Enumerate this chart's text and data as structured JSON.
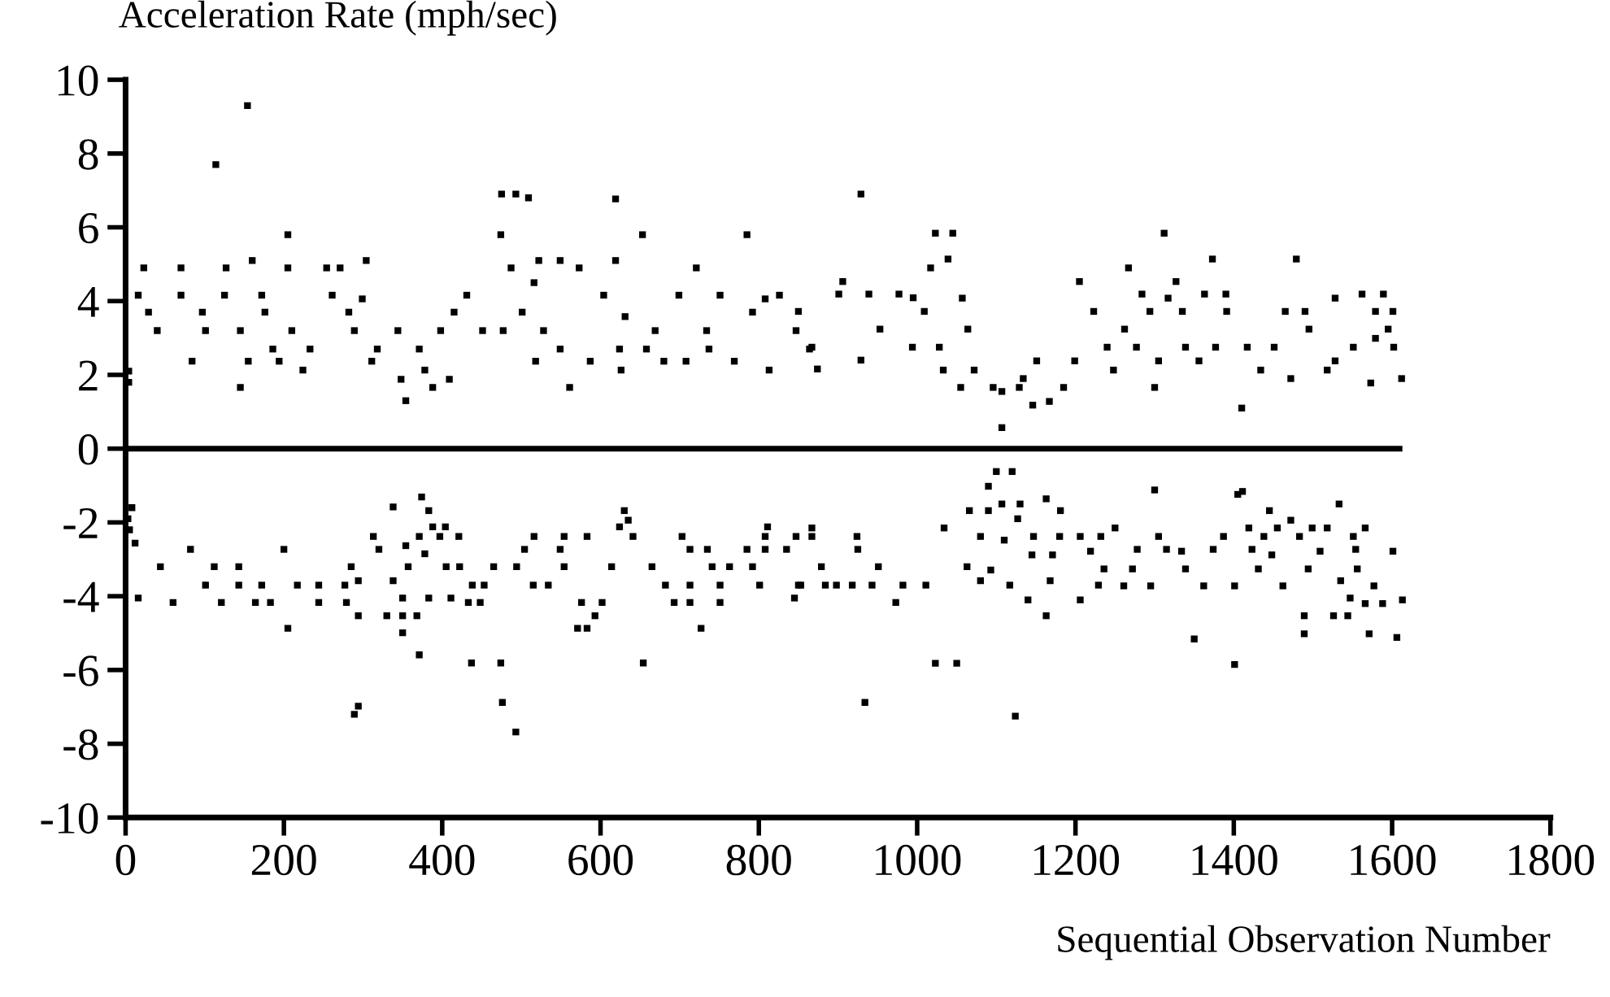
{
  "chart_data": {
    "type": "scatter",
    "ylabel": "Acceleration Rate (mph/sec)",
    "xlabel": "Sequential Observation Number",
    "xlim": [
      0,
      1800
    ],
    "xticks": [
      0,
      200,
      400,
      600,
      800,
      1000,
      1200,
      1400,
      1600,
      1800
    ],
    "ylim": [
      -10,
      10
    ],
    "yticks": [
      -10,
      -8,
      -6,
      -4,
      -2,
      0,
      2,
      4,
      6,
      8,
      10
    ],
    "grid": false,
    "legend": false,
    "marker": "square",
    "ref_lines": [
      {
        "axis": "y",
        "value": 0,
        "color": "#000000"
      }
    ],
    "series": [
      {
        "color": "#000000",
        "x": [
          4,
          4,
          16,
          23,
          29,
          40,
          70,
          70,
          84,
          97,
          101,
          114,
          125,
          127,
          145,
          145,
          154,
          155,
          160,
          172,
          176,
          186,
          194,
          205,
          205,
          210,
          224,
          233,
          254,
          261,
          271,
          282,
          289,
          304,
          299,
          311,
          318,
          344,
          348,
          354,
          371,
          378,
          388,
          398,
          409,
          415,
          431,
          451,
          474,
          475,
          477,
          487,
          493,
          509,
          501,
          516,
          518,
          522,
          528,
          549,
          549,
          561,
          573,
          587,
          604,
          619,
          619,
          624,
          631,
          626,
          653,
          658,
          669,
          680,
          699,
          721,
          708,
          734,
          737,
          751,
          769,
          785,
          792,
          808,
          813,
          826,
          847,
          864,
          850,
          867,
          874,
          901,
          906,
          929,
          929,
          939,
          953,
          977,
          995,
          994,
          1009,
          1017,
          1023,
          1028,
          1033,
          1039,
          1045,
          1057,
          1064,
          1072,
          1055,
          1096,
          1107,
          1107,
          1129,
          1134,
          1146,
          1151,
          1167,
          1185,
          1205,
          1199,
          1223,
          1240,
          1248,
          1262,
          1267,
          1277,
          1284,
          1294,
          1300,
          1305,
          1312,
          1317,
          1327,
          1335,
          1339,
          1356,
          1363,
          1373,
          1377,
          1391,
          1390,
          1410,
          1417,
          1434,
          1451,
          1465,
          1472,
          1479,
          1490,
          1495,
          1518,
          1528,
          1528,
          1551,
          1562,
          1573,
          1579,
          1579,
          1589,
          1595,
          1601,
          1602,
          1612,
          3,
          5,
          8,
          12,
          16,
          44,
          60,
          82,
          101,
          112,
          121,
          143,
          143,
          164,
          172,
          183,
          200,
          205,
          217,
          244,
          244,
          277,
          279,
          285,
          289,
          294,
          294,
          294,
          313,
          320,
          330,
          338,
          338,
          350,
          350,
          354,
          357,
          350,
          368,
          371,
          374,
          371,
          378,
          383,
          383,
          388,
          397,
          404,
          405,
          411,
          421,
          422,
          433,
          437,
          438,
          448,
          453,
          465,
          474,
          476,
          493,
          494,
          504,
          515,
          516,
          534,
          549,
          554,
          554,
          571,
          576,
          583,
          583,
          593,
          602,
          614,
          624,
          630,
          635,
          641,
          654,
          665,
          682,
          693,
          703,
          713,
          713,
          713,
          727,
          735,
          741,
          751,
          751,
          763,
          785,
          792,
          801,
          808,
          808,
          811,
          835,
          845,
          847,
          850,
          867,
          853,
          867,
          879,
          884,
          898,
          918,
          924,
          925,
          934,
          943,
          951,
          973,
          982,
          1011,
          1023,
          1034,
          1050,
          1063,
          1066,
          1090,
          1090,
          1100,
          1080,
          1080,
          1093,
          1107,
          1110,
          1117,
          1120,
          1124,
          1127,
          1130,
          1140,
          1145,
          1147,
          1163,
          1163,
          1168,
          1171,
          1181,
          1180,
          1206,
          1206,
          1219,
          1229,
          1232,
          1236,
          1250,
          1261,
          1272,
          1278,
          1295,
          1300,
          1305,
          1315,
          1334,
          1339,
          1350,
          1362,
          1374,
          1387,
          1401,
          1401,
          1405,
          1411,
          1419,
          1423,
          1431,
          1438,
          1445,
          1448,
          1455,
          1462,
          1472,
          1483,
          1489,
          1489,
          1494,
          1499,
          1509,
          1518,
          1526,
          1533,
          1535,
          1544,
          1547,
          1551,
          1554,
          1556,
          1566,
          1566,
          1571,
          1577,
          1588,
          1601,
          1606,
          1613
        ],
        "values": [
          1.8,
          2.1,
          4.16,
          4.9,
          3.7,
          3.2,
          4.9,
          4.16,
          2.37,
          3.7,
          3.2,
          7.7,
          4.16,
          4.9,
          3.2,
          1.66,
          9.3,
          2.37,
          5.1,
          4.16,
          3.7,
          2.7,
          2.37,
          5.8,
          4.9,
          3.2,
          2.13,
          2.7,
          4.9,
          4.16,
          4.9,
          3.7,
          3.2,
          5.1,
          4.06,
          2.37,
          2.7,
          3.2,
          1.88,
          1.3,
          2.7,
          2.13,
          1.66,
          3.2,
          1.88,
          3.7,
          4.16,
          3.2,
          5.8,
          6.9,
          3.2,
          4.9,
          6.9,
          6.8,
          3.7,
          4.5,
          2.37,
          5.1,
          3.2,
          5.1,
          2.7,
          1.66,
          4.9,
          2.37,
          4.16,
          6.77,
          5.1,
          2.7,
          3.58,
          2.13,
          5.8,
          2.7,
          3.2,
          2.37,
          4.16,
          4.9,
          2.37,
          3.2,
          2.7,
          4.16,
          2.37,
          5.8,
          3.7,
          4.06,
          2.13,
          4.16,
          3.2,
          2.7,
          3.72,
          2.75,
          2.16,
          4.19,
          4.53,
          6.9,
          2.4,
          4.19,
          3.24,
          4.19,
          4.09,
          2.75,
          3.72,
          4.9,
          5.84,
          2.75,
          2.13,
          5.14,
          5.84,
          4.08,
          3.24,
          2.13,
          1.66,
          1.66,
          1.55,
          0.57,
          1.66,
          1.9,
          1.18,
          2.38,
          1.28,
          1.66,
          4.53,
          2.38,
          3.72,
          2.75,
          2.13,
          3.24,
          4.9,
          2.75,
          4.19,
          3.72,
          1.66,
          2.38,
          5.84,
          4.08,
          4.53,
          3.72,
          2.75,
          2.38,
          4.19,
          5.14,
          2.75,
          3.72,
          4.19,
          1.1,
          2.75,
          2.13,
          2.75,
          3.72,
          1.9,
          5.14,
          3.72,
          3.24,
          2.13,
          2.38,
          4.08,
          2.75,
          4.19,
          1.78,
          2.99,
          3.72,
          4.19,
          3.24,
          3.72,
          2.75,
          1.9,
          -1.9,
          -2.2,
          -1.6,
          -2.56,
          -4.05,
          -3.2,
          -4.17,
          -2.73,
          -3.7,
          -3.2,
          -4.17,
          -3.2,
          -3.7,
          -4.17,
          -3.7,
          -4.17,
          -2.73,
          -4.87,
          -3.7,
          -3.7,
          -4.17,
          -3.7,
          -4.17,
          -3.2,
          -7.2,
          -6.98,
          -3.58,
          -4.53,
          -2.38,
          -2.73,
          -4.53,
          -1.58,
          -3.58,
          -4.53,
          -4.99,
          -2.63,
          -3.2,
          -4.05,
          -4.53,
          -5.59,
          -1.31,
          -2.38,
          -2.85,
          -1.68,
          -4.05,
          -2.12,
          -2.38,
          -2.12,
          -3.2,
          -4.05,
          -2.38,
          -3.2,
          -4.17,
          -5.81,
          -3.7,
          -4.17,
          -3.7,
          -3.2,
          -5.81,
          -6.88,
          -7.68,
          -3.2,
          -2.73,
          -3.7,
          -2.38,
          -3.7,
          -2.73,
          -2.38,
          -3.2,
          -4.87,
          -4.17,
          -2.38,
          -4.87,
          -4.53,
          -4.17,
          -3.2,
          -2.12,
          -1.68,
          -1.94,
          -2.38,
          -5.81,
          -3.2,
          -3.7,
          -4.17,
          -2.38,
          -2.73,
          -3.7,
          -4.17,
          -4.87,
          -2.73,
          -3.2,
          -3.7,
          -4.17,
          -3.2,
          -2.73,
          -3.2,
          -3.7,
          -2.73,
          -2.38,
          -2.12,
          -2.73,
          -4.05,
          -2.38,
          -3.7,
          -2.38,
          -3.7,
          -2.15,
          -3.2,
          -3.7,
          -3.7,
          -3.7,
          -2.38,
          -2.73,
          -6.88,
          -3.7,
          -3.2,
          -4.17,
          -3.7,
          -3.7,
          -5.82,
          -2.15,
          -5.82,
          -3.2,
          -1.68,
          -1.02,
          -1.68,
          -0.62,
          -2.38,
          -3.58,
          -3.29,
          -1.5,
          -2.48,
          -3.7,
          -0.62,
          -7.25,
          -1.9,
          -1.5,
          -4.1,
          -2.88,
          -2.38,
          -1.36,
          -4.53,
          -3.58,
          -2.88,
          -1.68,
          -2.38,
          -2.38,
          -4.1,
          -2.78,
          -3.7,
          -2.38,
          -3.26,
          -2.15,
          -3.72,
          -3.26,
          -2.73,
          -3.72,
          -1.12,
          -2.38,
          -2.73,
          -2.78,
          -3.26,
          -5.16,
          -3.72,
          -2.73,
          -2.38,
          -3.72,
          -5.85,
          -1.24,
          -1.16,
          -2.15,
          -2.73,
          -3.26,
          -2.38,
          -1.68,
          -2.88,
          -2.15,
          -3.72,
          -1.94,
          -2.38,
          -4.53,
          -5.02,
          -3.26,
          -2.15,
          -2.78,
          -2.15,
          -4.53,
          -1.5,
          -3.58,
          -4.53,
          -4.05,
          -2.38,
          -2.73,
          -3.26,
          -4.2,
          -2.15,
          -5.02,
          -3.72,
          -4.2,
          -2.78,
          -5.12,
          -4.1
        ]
      }
    ]
  }
}
